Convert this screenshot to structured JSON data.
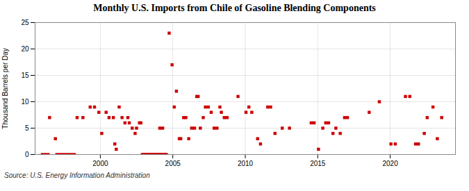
{
  "chart_data": {
    "type": "scatter",
    "title": "Monthly U.S. Imports from Chile of Gasoline Blending Components",
    "ylabel": "Thousand Barrels per Day",
    "source": "Source: U.S. Energy Information Administration",
    "color": "#cc0000",
    "marker": "square",
    "grid": true,
    "xlim": [
      1995.5,
      2024.5
    ],
    "xticks": [
      2000,
      2005,
      2010,
      2015,
      2020
    ],
    "ylim": [
      0,
      25
    ],
    "yticks": [
      0,
      5,
      10,
      15,
      20,
      25
    ],
    "x": [
      1996.5,
      1996.9,
      1998.4,
      1998.8,
      1999.3,
      1999.6,
      1999.9,
      2000.1,
      2000.4,
      2000.6,
      2000.9,
      2001.0,
      2001.1,
      2001.3,
      2001.5,
      2001.7,
      2001.9,
      2002.0,
      2002.2,
      2002.4,
      2002.5,
      2002.7,
      2002.8,
      1996.0,
      1996.2,
      1996.4,
      1997.0,
      1997.2,
      1997.4,
      1997.6,
      1997.8,
      1998.0,
      1998.2,
      2002.9,
      2003.0,
      2003.05,
      2003.1,
      2003.15,
      2003.2,
      2003.25,
      2003.3,
      2003.35,
      2003.4,
      2003.45,
      2003.5,
      2003.55,
      2003.6,
      2003.65,
      2003.7,
      2003.75,
      2003.8,
      2003.85,
      2003.9,
      2003.95,
      2004.0,
      2004.05,
      2004.1,
      2004.15,
      2004.2,
      2004.25,
      2004.3,
      2004.35,
      2004.4,
      2004.45,
      2004.5,
      2004.55,
      2004.1,
      2004.3,
      2004.75,
      2004.95,
      2005.1,
      2005.25,
      2005.45,
      2005.55,
      2005.75,
      2005.9,
      2006.1,
      2006.3,
      2006.5,
      2006.65,
      2006.75,
      2006.9,
      2007.1,
      2007.25,
      2007.45,
      2007.65,
      2007.85,
      2008.05,
      2008.25,
      2008.35,
      2008.55,
      2008.75,
      2009.5,
      2010.05,
      2010.25,
      2010.45,
      2010.85,
      2011.05,
      2011.55,
      2011.75,
      2012.05,
      2012.55,
      2013.05,
      2014.55,
      2014.75,
      2015.05,
      2015.35,
      2015.55,
      2015.75,
      2016.05,
      2016.25,
      2016.55,
      2016.85,
      2017.05,
      2018.55,
      2019.25,
      2020.05,
      2020.35,
      2021.05,
      2021.35,
      2021.75,
      2021.95,
      2022.35,
      2022.55,
      2022.95,
      2023.25,
      2023.55
    ],
    "values": [
      7,
      3,
      7,
      7,
      9,
      9,
      8,
      4,
      8,
      7,
      7,
      2,
      1,
      9,
      7,
      6,
      7,
      6,
      5,
      4,
      5,
      6,
      6,
      0,
      0,
      0,
      0,
      0,
      0,
      0,
      0,
      0,
      0,
      0,
      0,
      0,
      0,
      0,
      0,
      0,
      0,
      0,
      0,
      0,
      0,
      0,
      0,
      0,
      0,
      0,
      0,
      0,
      0,
      0,
      0,
      0,
      0,
      0,
      0,
      0,
      0,
      0,
      0,
      0,
      0,
      0,
      5,
      5,
      23,
      17,
      9,
      12,
      3,
      3,
      7,
      7,
      3,
      5,
      5,
      11,
      11,
      5,
      7,
      9,
      9,
      8,
      5,
      5,
      9,
      8,
      7,
      7,
      11,
      8,
      9,
      8,
      3,
      2,
      9,
      9,
      4,
      5,
      5,
      6,
      6,
      1,
      5,
      6,
      6,
      4,
      5,
      4,
      7,
      7,
      8,
      10,
      2,
      2,
      11,
      11,
      2,
      2,
      4,
      7,
      9,
      3,
      7
    ]
  }
}
